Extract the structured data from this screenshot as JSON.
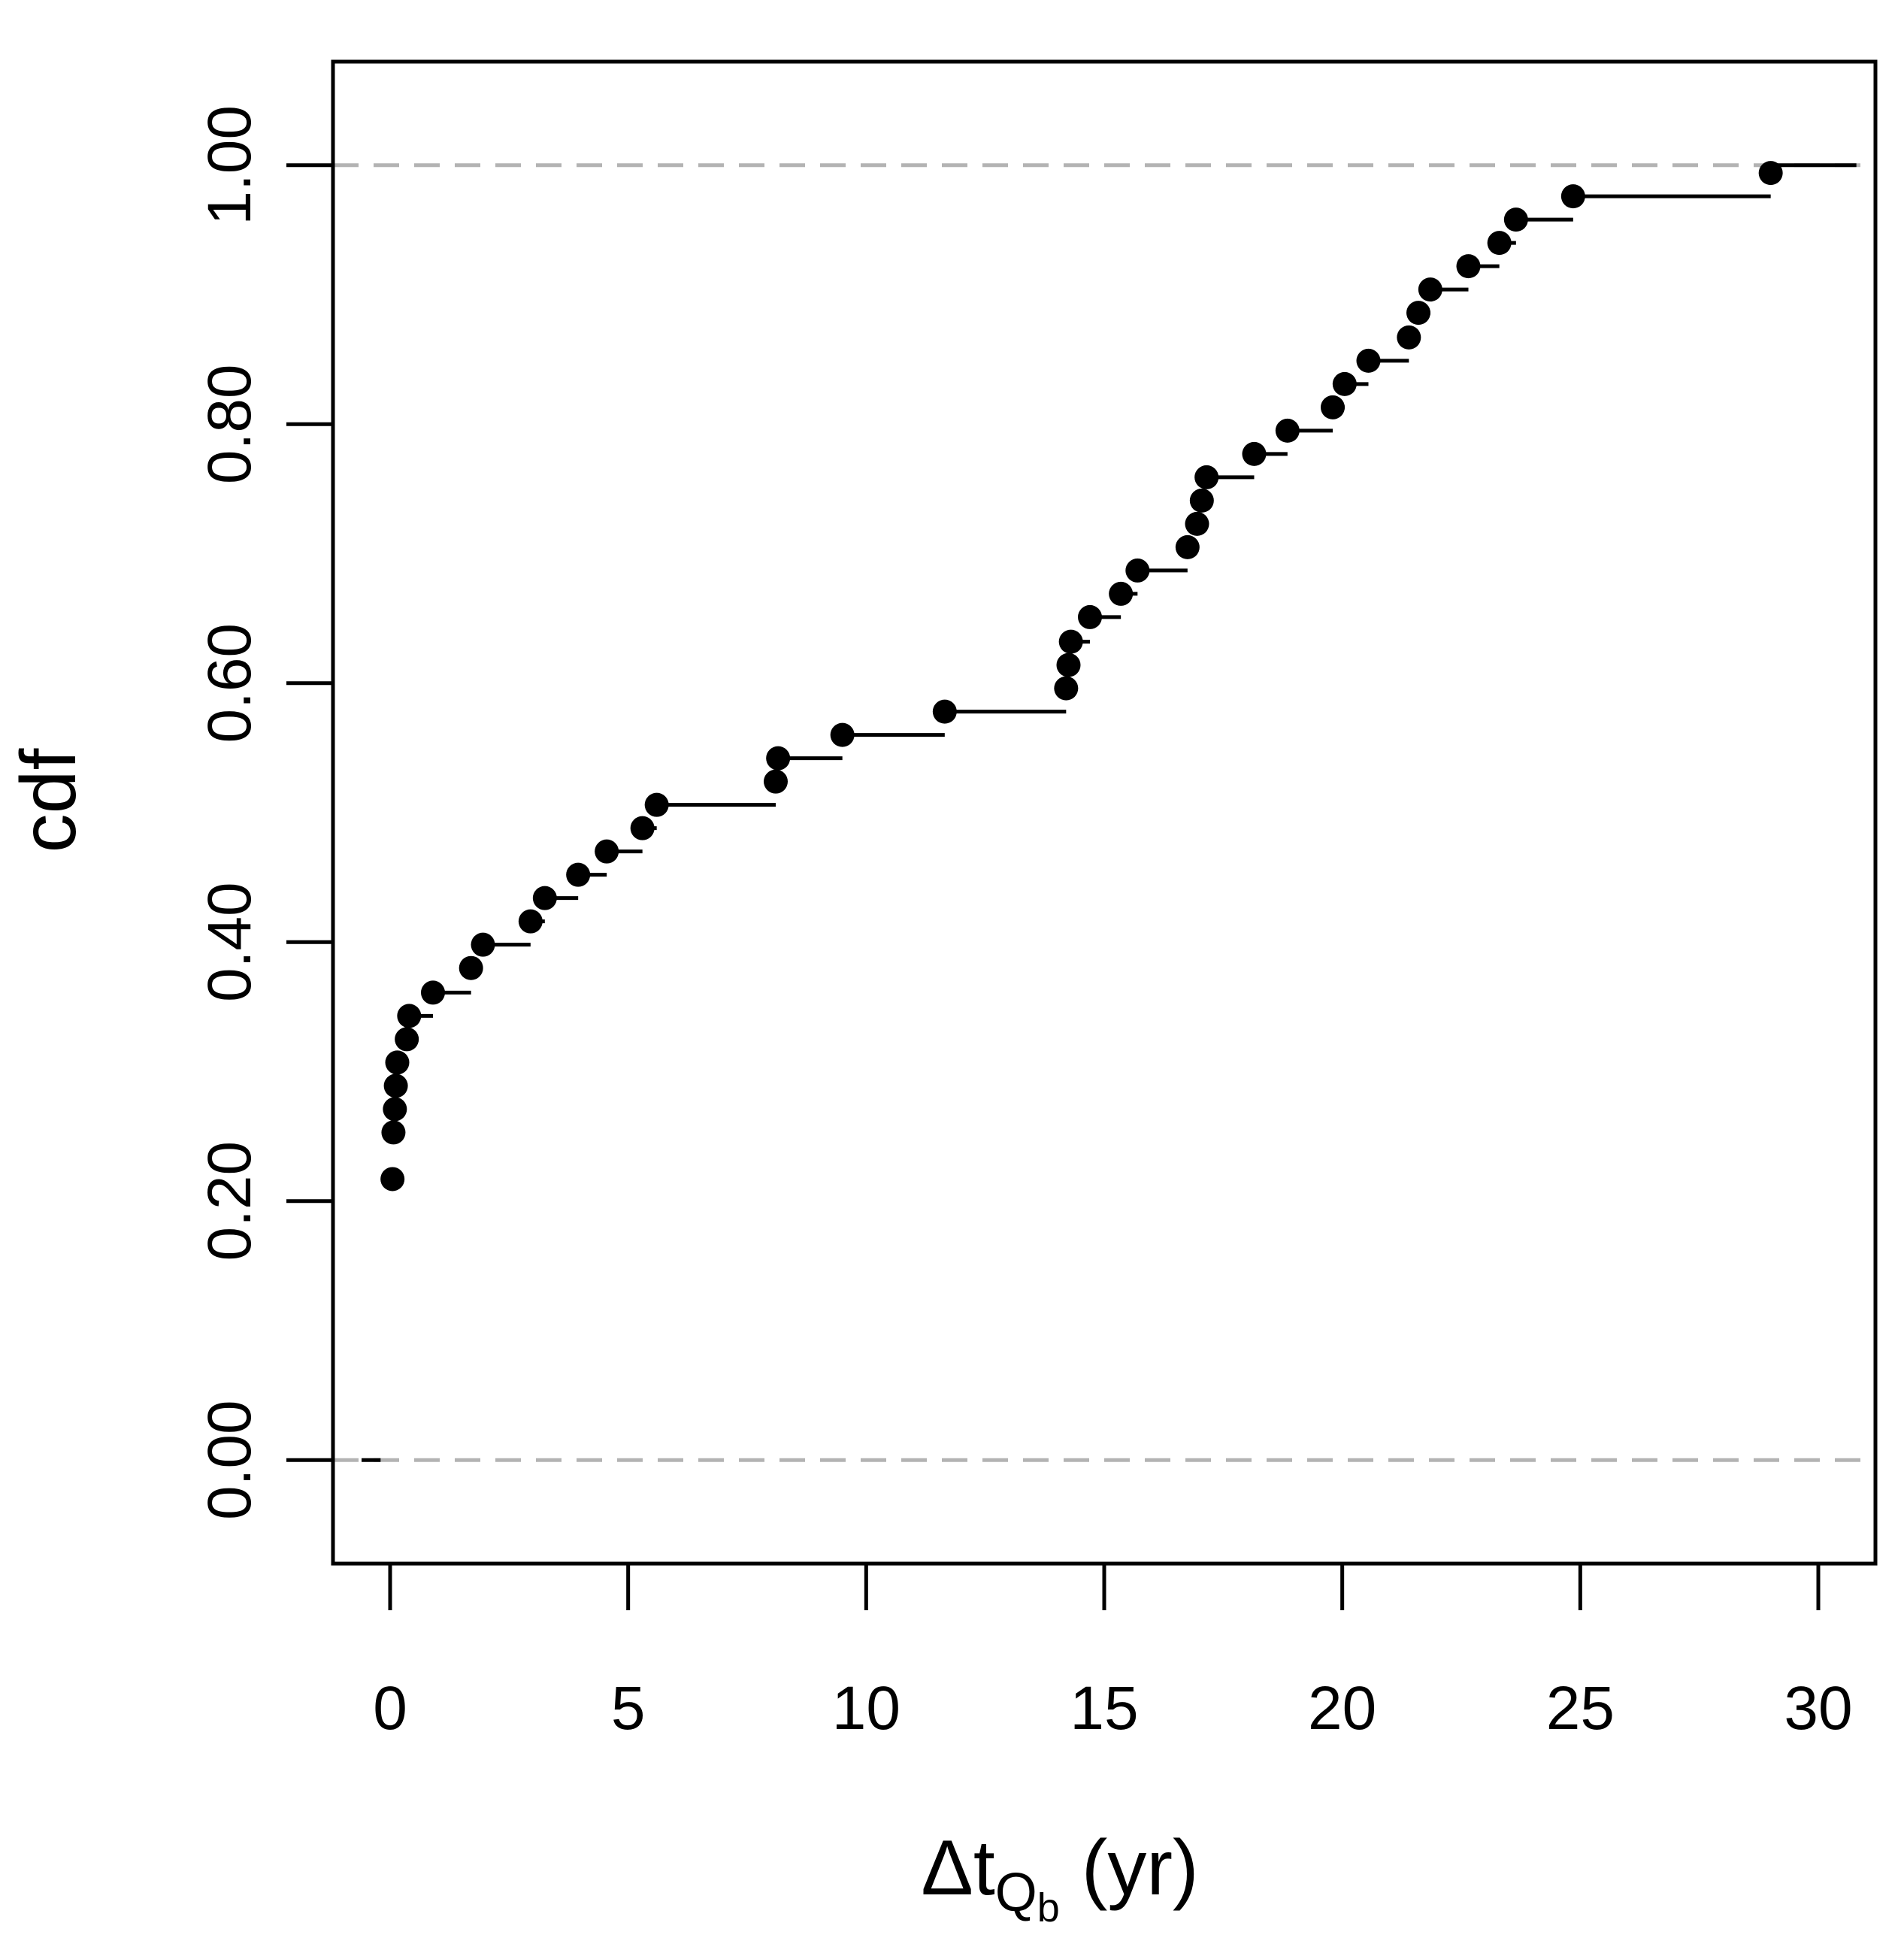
{
  "chart_data": {
    "type": "line",
    "subtype": "ecdf-step",
    "title": "",
    "xlabel": {
      "main": "Δt",
      "sub": "Q",
      "subsub": "b",
      "unit": " (yr)"
    },
    "ylabel": "cdf",
    "xlim": [
      -1.2,
      31.2
    ],
    "ylim": [
      -0.08,
      1.08
    ],
    "xticks": [
      0,
      5,
      10,
      15,
      20,
      25,
      30
    ],
    "xtick_labels": [
      "0",
      "5",
      "10",
      "15",
      "20",
      "25",
      "30"
    ],
    "yticks": [
      0.0,
      0.2,
      0.4,
      0.6,
      0.8,
      1.0
    ],
    "ytick_labels": [
      "0.00",
      "0.20",
      "0.40",
      "0.60",
      "0.80",
      "1.00"
    ],
    "reference_lines": [
      0.0,
      1.0
    ],
    "grid": false,
    "legend": "none",
    "colors": {
      "points": "#000000",
      "steps": "#000000",
      "reference_lines": "#b3b3b3",
      "frame": "#000000"
    },
    "pre_step": {
      "x_start": -0.6,
      "x_end": -0.2,
      "y": 0.0
    },
    "post_step": {
      "x_start": 29.0,
      "x_end": 30.8,
      "y": 1.0
    },
    "series": [
      {
        "x": [
          0.05,
          0.07,
          0.1,
          0.12,
          0.15,
          0.35,
          0.4,
          0.9,
          1.7,
          1.95,
          2.95,
          3.25,
          3.95,
          4.55,
          5.3,
          5.6,
          8.1,
          8.15,
          9.5,
          11.65,
          14.2,
          14.25,
          14.3,
          14.7,
          15.35,
          15.7,
          16.75,
          16.95,
          17.05,
          17.15,
          18.15,
          18.85,
          19.8,
          20.05,
          20.55,
          21.4,
          21.6,
          21.85,
          22.65,
          23.3,
          23.65,
          24.85,
          29.0
        ],
        "y": [
          0.217,
          0.253,
          0.271,
          0.289,
          0.307,
          0.325,
          0.343,
          0.361,
          0.38,
          0.398,
          0.416,
          0.434,
          0.452,
          0.47,
          0.488,
          0.506,
          0.524,
          0.542,
          0.56,
          0.578,
          0.596,
          0.614,
          0.632,
          0.651,
          0.669,
          0.687,
          0.705,
          0.723,
          0.741,
          0.759,
          0.777,
          0.795,
          0.813,
          0.831,
          0.849,
          0.867,
          0.886,
          0.904,
          0.922,
          0.94,
          0.958,
          0.976,
          0.994
        ]
      }
    ]
  }
}
